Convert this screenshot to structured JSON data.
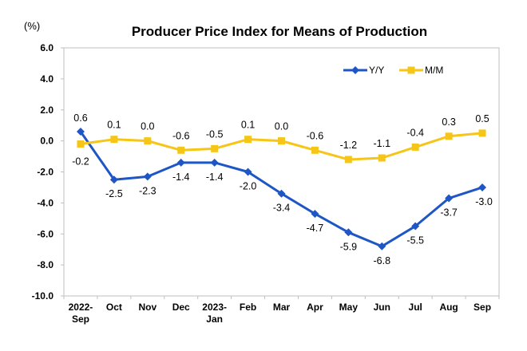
{
  "chart_data": {
    "type": "line",
    "title": "Producer Price Index for Means of Production",
    "unit_label": "(%)",
    "categories": [
      [
        "2022-",
        "Sep"
      ],
      [
        "Oct"
      ],
      [
        "Nov"
      ],
      [
        "Dec"
      ],
      [
        "2023-",
        "Jan"
      ],
      [
        "Feb"
      ],
      [
        "Mar"
      ],
      [
        "Apr"
      ],
      [
        "May"
      ],
      [
        "Jun"
      ],
      [
        "Jul"
      ],
      [
        "Aug"
      ],
      [
        "Sep"
      ]
    ],
    "ylim": [
      -10.0,
      6.0
    ],
    "yticks": [
      "6.0",
      "4.0",
      "2.0",
      "0.0",
      "-2.0",
      "-4.0",
      "-6.0",
      "-8.0",
      "-10.0"
    ],
    "ytick_values": [
      6,
      4,
      2,
      0,
      -2,
      -4,
      -6,
      -8,
      -10
    ],
    "grid": false,
    "legend_position": "top-right",
    "series": [
      {
        "name": "Y/Y",
        "color": "#1f56c5",
        "marker": "diamond",
        "values": [
          0.6,
          -2.5,
          -2.3,
          -1.4,
          -1.4,
          -2.0,
          -3.4,
          -4.7,
          -5.9,
          -6.8,
          -5.5,
          -3.7,
          -3.0
        ],
        "labels": [
          "0.6",
          "-2.5",
          "-2.3",
          "-1.4",
          "-1.4",
          "-2.0",
          "-3.4",
          "-4.7",
          "-5.9",
          "-6.8",
          "-5.5",
          "-3.7",
          "-3.0"
        ]
      },
      {
        "name": "M/M",
        "color": "#f5c518",
        "marker": "square",
        "values": [
          -0.2,
          0.1,
          0.0,
          -0.6,
          -0.5,
          0.1,
          0.0,
          -0.6,
          -1.2,
          -1.1,
          -0.4,
          0.3,
          0.5
        ],
        "labels": [
          "-0.2",
          "0.1",
          "0.0",
          "-0.6",
          "-0.5",
          "0.1",
          "0.0",
          "-0.6",
          "-1.2",
          "-1.1",
          "-0.4",
          "0.3",
          "0.5"
        ]
      }
    ]
  }
}
